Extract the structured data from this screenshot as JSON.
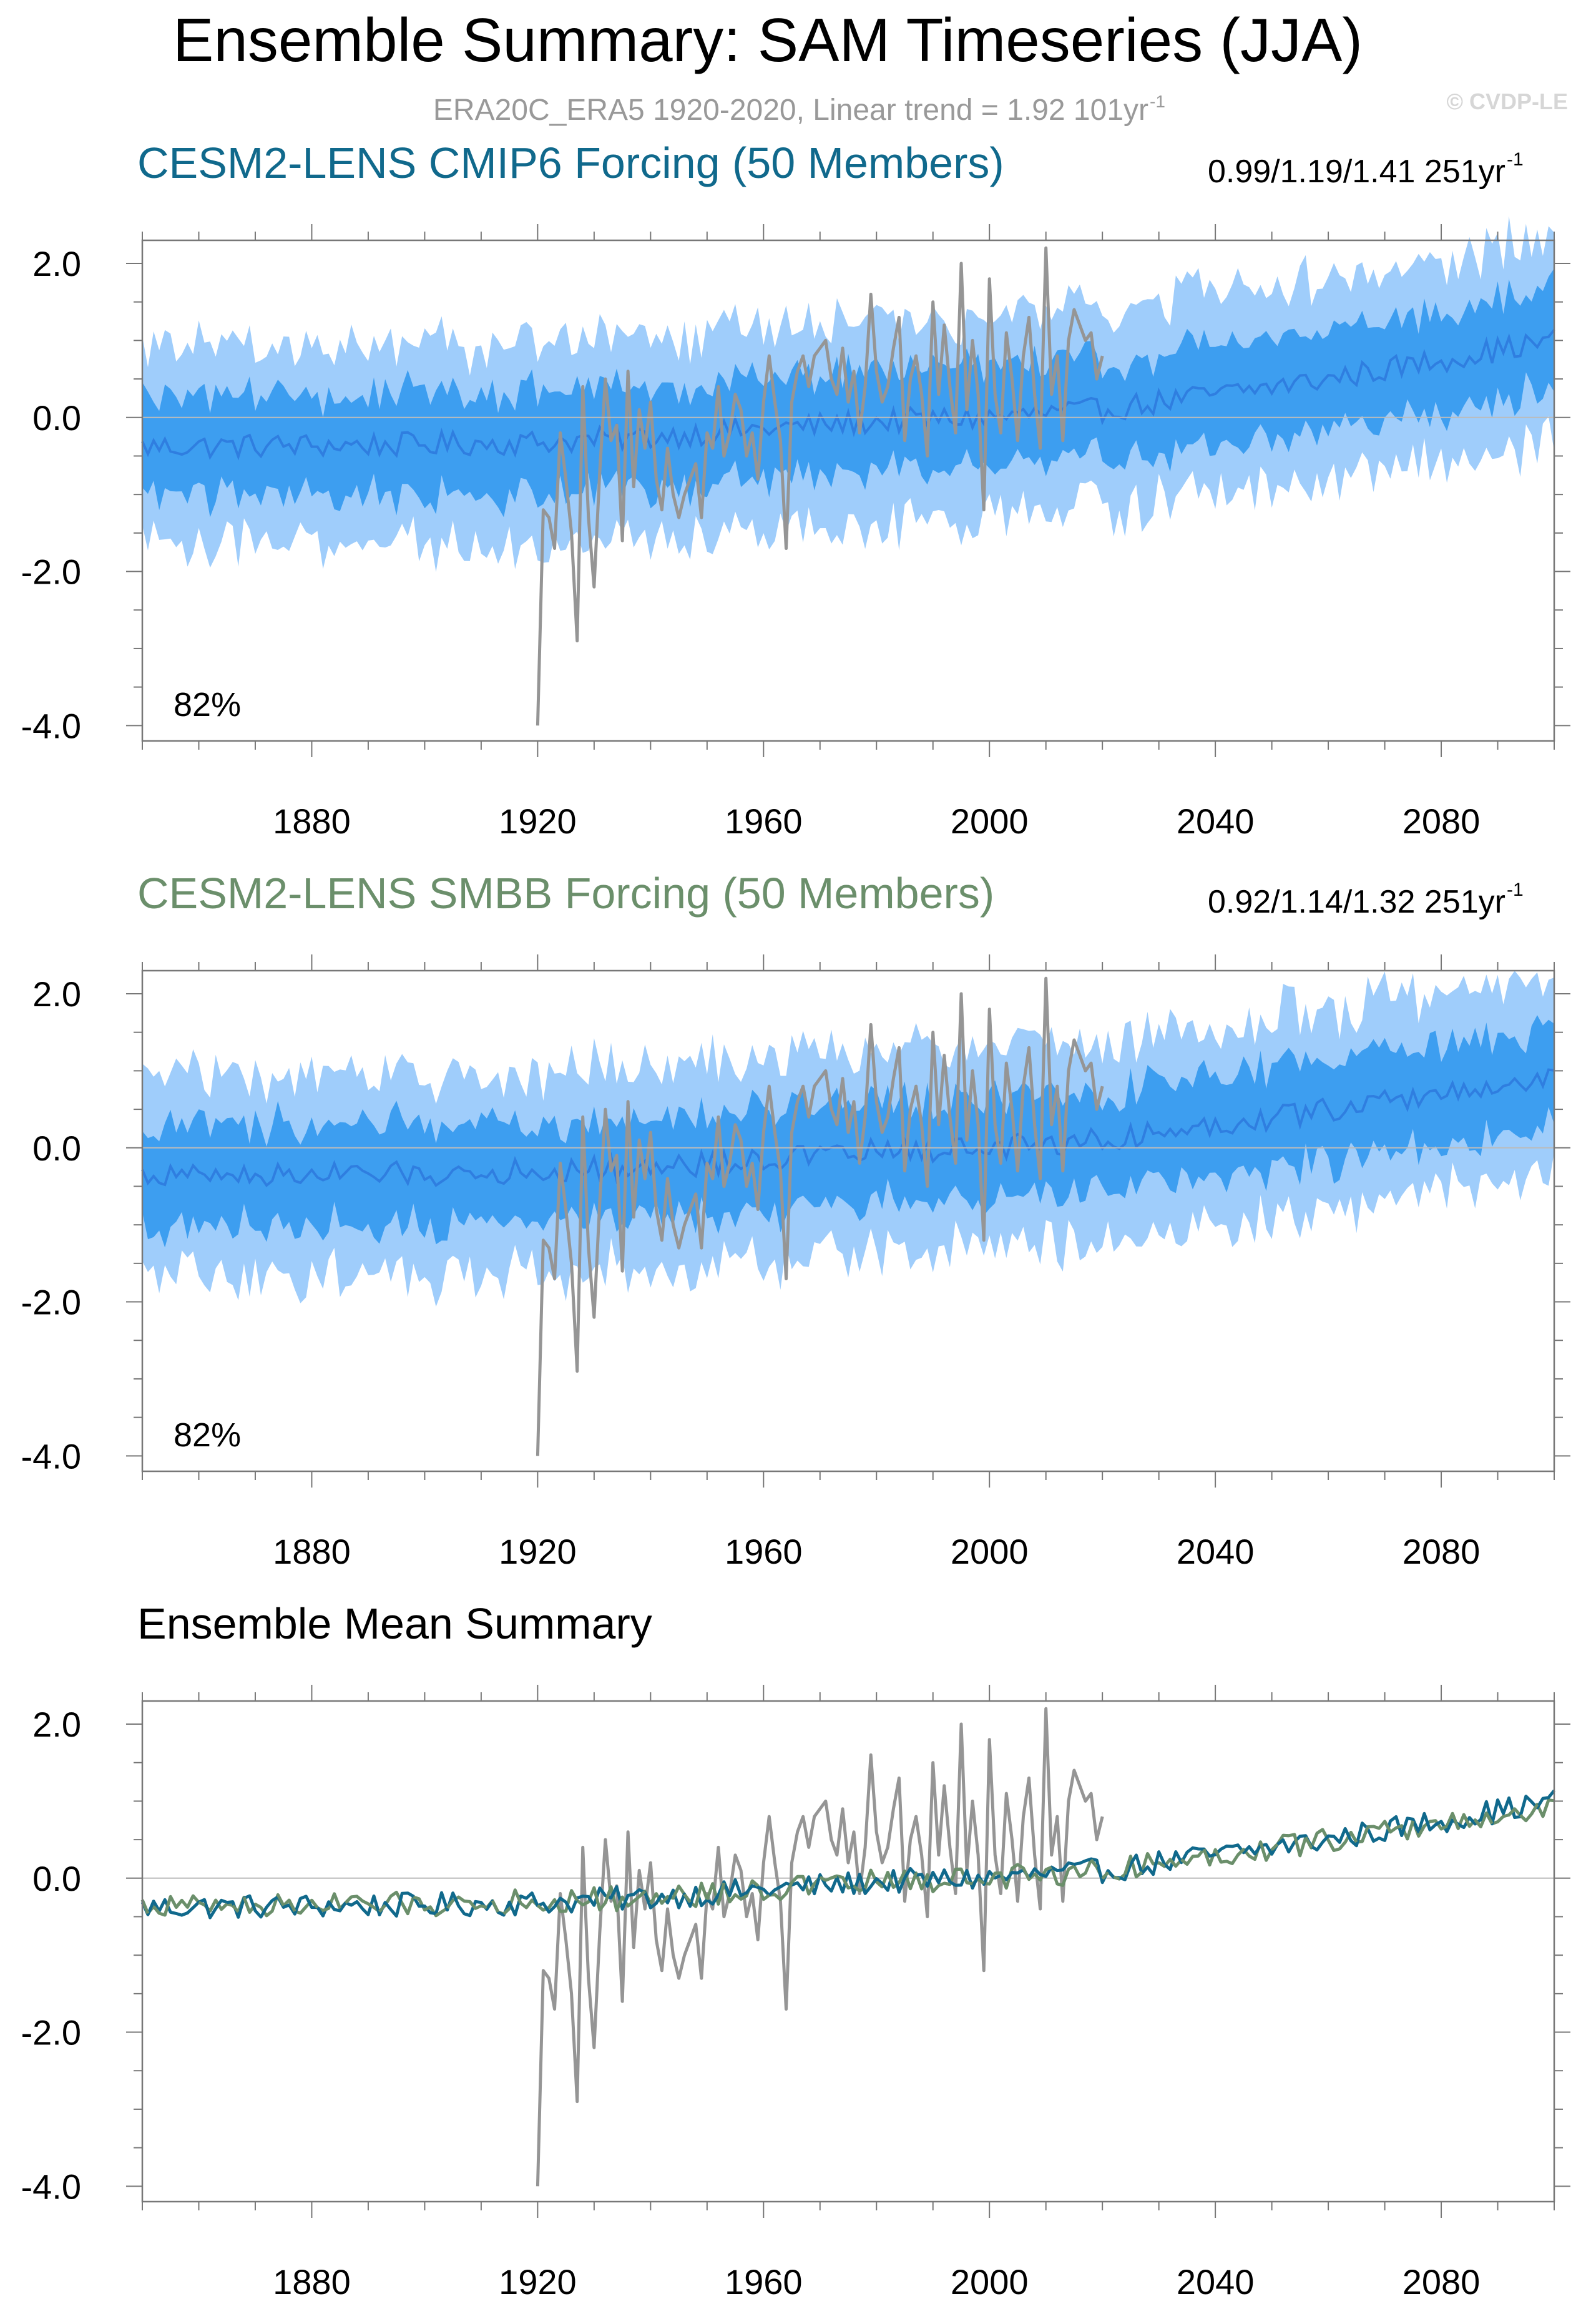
{
  "header": {
    "title": "Ensemble Summary: SAM Timeseries (JJA)",
    "subtitle": "ERA20C_ERA5 1920-2020, Linear trend = 1.92 101yr",
    "subtitle_sup": "-1",
    "watermark": "© CVDP-LE"
  },
  "colors": {
    "band_outer": "#9fcdfb",
    "band_inner": "#3d9ef0",
    "mean_line": "#2f7ee0",
    "obs_line": "#959595",
    "cmip6": "#10698c",
    "smbb": "#6b8f6b",
    "axis": "#777777",
    "zero_line": "#bbbbbb"
  },
  "panels": [
    {
      "title": "CESM2-LENS CMIP6 Forcing (50 Members)",
      "trend": "0.99/1.19/1.41 251yr",
      "trend_sup": "-1",
      "percent": "82%"
    },
    {
      "title": "CESM2-LENS SMBB Forcing (50 Members)",
      "trend": "0.92/1.14/1.32 251yr",
      "trend_sup": "-1",
      "percent": "82%"
    },
    {
      "title": "Ensemble Mean Summary"
    }
  ],
  "chart_data": [
    {
      "type": "area",
      "title": "CESM2-LENS CMIP6 Forcing (50 Members)",
      "xlim": [
        1850,
        2100
      ],
      "ylim": [
        -4.2,
        2.3
      ],
      "x_ticks": [
        1880,
        1920,
        1960,
        2000,
        2040,
        2080
      ],
      "y_ticks": [
        2.0,
        0.0,
        -2.0,
        -4.0
      ],
      "y_tick_labels": [
        "2.0",
        "0.0",
        "-2.0",
        "-4.0"
      ],
      "ensemble_mean_keypoints": {
        "x": [
          1850,
          1900,
          1920,
          1940,
          1960,
          1980,
          2000,
          2020,
          2040,
          2060,
          2080,
          2100
        ],
        "y": [
          -0.38,
          -0.35,
          -0.32,
          -0.25,
          -0.15,
          -0.05,
          0.0,
          0.1,
          0.3,
          0.5,
          0.75,
          1.0
        ]
      },
      "inner_band_halfwidth": 0.65,
      "outer_band_halfwidth": 1.3,
      "obs_range": [
        1920,
        2020
      ],
      "obs_trend_per_101yr": 1.92,
      "percent_label": "82%"
    },
    {
      "type": "area",
      "title": "CESM2-LENS SMBB Forcing (50 Members)",
      "xlim": [
        1850,
        2100
      ],
      "ylim": [
        -4.2,
        2.3
      ],
      "x_ticks": [
        1880,
        1920,
        1960,
        2000,
        2040,
        2080
      ],
      "y_ticks": [
        2.0,
        0.0,
        -2.0,
        -4.0
      ],
      "y_tick_labels": [
        "2.0",
        "0.0",
        "-2.0",
        "-4.0"
      ],
      "ensemble_mean_keypoints": {
        "x": [
          1850,
          1900,
          1920,
          1940,
          1960,
          1980,
          2000,
          2020,
          2040,
          2060,
          2080,
          2100
        ],
        "y": [
          -0.36,
          -0.34,
          -0.3,
          -0.25,
          -0.15,
          -0.05,
          0.0,
          0.1,
          0.3,
          0.5,
          0.7,
          0.9
        ]
      },
      "inner_band_halfwidth": 0.65,
      "outer_band_halfwidth": 1.3,
      "obs_range": [
        1920,
        2020
      ],
      "obs_trend_per_101yr": 1.92,
      "percent_label": "82%"
    },
    {
      "type": "line",
      "title": "Ensemble Mean Summary",
      "xlim": [
        1850,
        2100
      ],
      "ylim": [
        -4.2,
        2.3
      ],
      "x_ticks": [
        1880,
        1920,
        1960,
        2000,
        2040,
        2080
      ],
      "y_ticks": [
        2.0,
        0.0,
        -2.0,
        -4.0
      ],
      "y_tick_labels": [
        "2.0",
        "0.0",
        "-2.0",
        "-4.0"
      ],
      "series": [
        {
          "name": "CESM2-LENS CMIP6 Forcing",
          "color": "#10698c"
        },
        {
          "name": "CESM2-LENS SMBB Forcing",
          "color": "#6b8f6b"
        },
        {
          "name": "ERA20C_ERA5",
          "color": "#959595"
        }
      ]
    }
  ],
  "observations": {
    "name": "ERA20C_ERA5",
    "x": [
      1920,
      1921,
      1922,
      1923,
      1924,
      1925,
      1926,
      1927,
      1928,
      1929,
      1930,
      1931,
      1932,
      1933,
      1934,
      1935,
      1936,
      1937,
      1938,
      1939,
      1940,
      1941,
      1942,
      1943,
      1944,
      1945,
      1946,
      1947,
      1948,
      1949,
      1950,
      1951,
      1952,
      1953,
      1954,
      1955,
      1956,
      1957,
      1958,
      1959,
      1960,
      1961,
      1962,
      1963,
      1964,
      1965,
      1966,
      1967,
      1968,
      1969,
      1970,
      1971,
      1972,
      1973,
      1974,
      1975,
      1976,
      1977,
      1978,
      1979,
      1980,
      1981,
      1982,
      1983,
      1984,
      1985,
      1986,
      1987,
      1988,
      1989,
      1990,
      1991,
      1992,
      1993,
      1994,
      1995,
      1996,
      1997,
      1998,
      1999,
      2000,
      2001,
      2002,
      2003,
      2004,
      2005,
      2006,
      2007,
      2008,
      2009,
      2010,
      2011,
      2012,
      2013,
      2014,
      2015,
      2016,
      2017,
      2018,
      2019,
      2020
    ],
    "y": [
      -4.0,
      -1.2,
      -1.3,
      -1.7,
      -0.2,
      -0.8,
      -1.5,
      -2.9,
      0.4,
      -1.3,
      -2.2,
      -0.7,
      0.5,
      -0.3,
      -0.1,
      -1.6,
      0.6,
      -0.9,
      0.1,
      -0.4,
      0.2,
      -0.8,
      -1.2,
      -0.4,
      -1.0,
      -1.3,
      -1.0,
      -0.8,
      -0.6,
      -1.3,
      -0.2,
      -0.4,
      0.4,
      -0.5,
      -0.2,
      0.3,
      0.1,
      -0.5,
      -0.2,
      -0.8,
      0.2,
      0.8,
      0.2,
      -0.3,
      -1.7,
      0.2,
      0.6,
      0.8,
      0.4,
      0.8,
      0.9,
      1.0,
      0.5,
      0.3,
      0.9,
      0.2,
      0.6,
      -0.2,
      0.4,
      1.6,
      0.6,
      0.2,
      0.4,
      0.9,
      1.3,
      -0.3,
      0.5,
      0.8,
      0.3,
      -0.5,
      1.5,
      0.3,
      1.2,
      0.4,
      -0.2,
      2.0,
      0.1,
      1.0,
      0.3,
      -1.2,
      1.8,
      0.3,
      -0.2,
      1.1,
      0.5,
      -0.3,
      0.8,
      1.3,
      0.3,
      -0.4,
      2.2,
      0.3,
      0.8,
      -0.3,
      1.0,
      1.4,
      1.2,
      1.0,
      1.1,
      0.5,
      0.8
    ]
  }
}
